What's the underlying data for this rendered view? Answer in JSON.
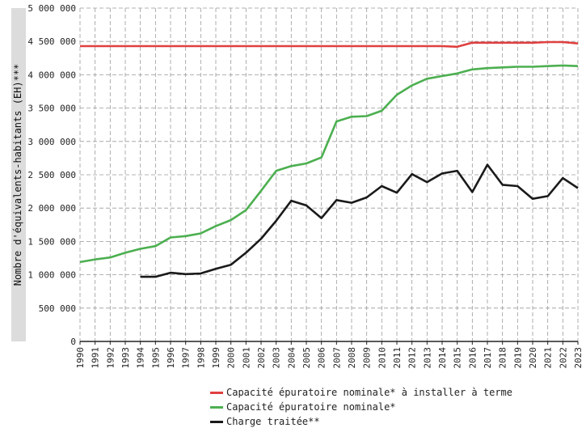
{
  "chart_data": {
    "type": "line",
    "ylabel": "Nombre d'équivalents-habitants (EH)***",
    "ylim": [
      0,
      5000000
    ],
    "yticks": [
      0,
      500000,
      1000000,
      1500000,
      2000000,
      2500000,
      3000000,
      3500000,
      4000000,
      4500000,
      5000000
    ],
    "ytick_labels": [
      "0",
      "500 000",
      "1 000 000",
      "1 500 000",
      "2 000 000",
      "2 500 000",
      "3 000 000",
      "3 500 000",
      "4 000 000",
      "4 500 000",
      "5 000 000"
    ],
    "x": [
      1990,
      1991,
      1992,
      1993,
      1994,
      1995,
      1996,
      1997,
      1998,
      1999,
      2000,
      2001,
      2002,
      2003,
      2004,
      2005,
      2006,
      2007,
      2008,
      2009,
      2010,
      2011,
      2012,
      2013,
      2014,
      2015,
      2016,
      2017,
      2018,
      2019,
      2020,
      2021,
      2022,
      2023
    ],
    "xlim": [
      1990,
      2023
    ],
    "grid": true,
    "legend_position": "bottom",
    "series": [
      {
        "name": "Capacité épuratoire nominale* à installer à terme",
        "color": "#e04040",
        "values": [
          4430000,
          4430000,
          4430000,
          4430000,
          4430000,
          4430000,
          4430000,
          4430000,
          4430000,
          4430000,
          4430000,
          4430000,
          4430000,
          4430000,
          4430000,
          4430000,
          4430000,
          4430000,
          4430000,
          4430000,
          4430000,
          4430000,
          4430000,
          4430000,
          4430000,
          4420000,
          4480000,
          4480000,
          4480000,
          4480000,
          4480000,
          4490000,
          4490000,
          4470000
        ]
      },
      {
        "name": "Capacité épuratoire nominale*",
        "color": "#4caf50",
        "values": [
          1190000,
          1230000,
          1260000,
          1330000,
          1390000,
          1430000,
          1560000,
          1580000,
          1620000,
          1730000,
          1820000,
          1970000,
          2260000,
          2560000,
          2630000,
          2670000,
          2760000,
          3300000,
          3370000,
          3380000,
          3460000,
          3700000,
          3840000,
          3940000,
          3980000,
          4020000,
          4080000,
          4100000,
          4110000,
          4120000,
          4120000,
          4130000,
          4140000,
          4130000
        ]
      },
      {
        "name": "Charge traitée**",
        "color": "#1a1a1a",
        "values": [
          null,
          null,
          null,
          null,
          970000,
          970000,
          1030000,
          1010000,
          1020000,
          1090000,
          1150000,
          1330000,
          1540000,
          1810000,
          2110000,
          2040000,
          1850000,
          2120000,
          2080000,
          2160000,
          2330000,
          2230000,
          2510000,
          2390000,
          2520000,
          2560000,
          2240000,
          2650000,
          2350000,
          2330000,
          2140000,
          2180000,
          2450000,
          2300000
        ]
      }
    ]
  }
}
